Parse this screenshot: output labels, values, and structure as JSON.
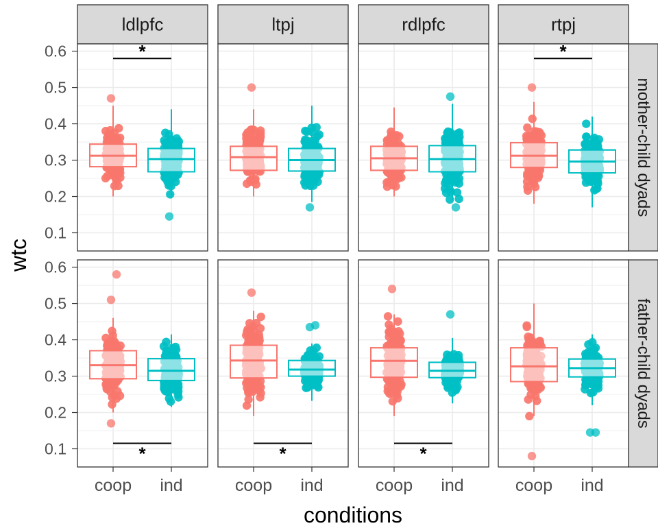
{
  "chart_data": {
    "type": "boxplot",
    "xlabel": "conditions",
    "ylabel": "wtc",
    "ylim": [
      0.05,
      0.62
    ],
    "yticks": [
      0.1,
      0.2,
      0.3,
      0.4,
      0.5,
      0.6
    ],
    "ytick_labels": [
      "0.1",
      "0.2",
      "0.3",
      "0.4",
      "0.5",
      "0.6"
    ],
    "categories": [
      "coop",
      "ind"
    ],
    "columns": [
      "ldlpfc",
      "ltpj",
      "rdlpfc",
      "rtpj"
    ],
    "rows": [
      "mother-child dyads",
      "father-child dyads"
    ],
    "grid": true,
    "colors": {
      "coop": "#F8766D",
      "ind": "#00BFC4",
      "box_fill": "#ffffff",
      "strip": "#D9D9D9",
      "grid": "#EBEBEB"
    },
    "significance_marker": "*",
    "panels": [
      {
        "row": 0,
        "col": 0,
        "sig": {
          "label": "*",
          "y": 0.58
        },
        "groups": [
          {
            "condition": "coop",
            "q1": 0.282,
            "median": 0.312,
            "q3": 0.344,
            "min": 0.2,
            "max": 0.45,
            "outliers": [
              0.47
            ]
          },
          {
            "condition": "ind",
            "q1": 0.268,
            "median": 0.303,
            "q3": 0.332,
            "min": 0.195,
            "max": 0.44,
            "outliers": [
              0.145
            ]
          }
        ]
      },
      {
        "row": 0,
        "col": 1,
        "sig": null,
        "groups": [
          {
            "condition": "coop",
            "q1": 0.272,
            "median": 0.308,
            "q3": 0.338,
            "min": 0.2,
            "max": 0.44,
            "outliers": [
              0.5
            ]
          },
          {
            "condition": "ind",
            "q1": 0.27,
            "median": 0.3,
            "q3": 0.332,
            "min": 0.185,
            "max": 0.45,
            "outliers": [
              0.17
            ]
          }
        ]
      },
      {
        "row": 0,
        "col": 2,
        "sig": null,
        "groups": [
          {
            "condition": "coop",
            "q1": 0.272,
            "median": 0.305,
            "q3": 0.338,
            "min": 0.2,
            "max": 0.445,
            "outliers": []
          },
          {
            "condition": "ind",
            "q1": 0.268,
            "median": 0.303,
            "q3": 0.34,
            "min": 0.19,
            "max": 0.455,
            "outliers": [
              0.475,
              0.17
            ]
          }
        ]
      },
      {
        "row": 0,
        "col": 3,
        "sig": {
          "label": "*",
          "y": 0.58
        },
        "groups": [
          {
            "condition": "coop",
            "q1": 0.28,
            "median": 0.312,
            "q3": 0.348,
            "min": 0.18,
            "max": 0.46,
            "outliers": [
              0.5
            ]
          },
          {
            "condition": "ind",
            "q1": 0.265,
            "median": 0.296,
            "q3": 0.328,
            "min": 0.17,
            "max": 0.42,
            "outliers": []
          }
        ]
      },
      {
        "row": 1,
        "col": 0,
        "sig": {
          "label": "*",
          "y": 0.115
        },
        "groups": [
          {
            "condition": "coop",
            "q1": 0.293,
            "median": 0.33,
            "q3": 0.37,
            "min": 0.2,
            "max": 0.46,
            "outliers": [
              0.51,
              0.58,
              0.17
            ]
          },
          {
            "condition": "ind",
            "q1": 0.288,
            "median": 0.315,
            "q3": 0.348,
            "min": 0.215,
            "max": 0.415,
            "outliers": []
          }
        ]
      },
      {
        "row": 1,
        "col": 1,
        "sig": {
          "label": "*",
          "y": 0.115
        },
        "groups": [
          {
            "condition": "coop",
            "q1": 0.295,
            "median": 0.343,
            "q3": 0.385,
            "min": 0.19,
            "max": 0.48,
            "outliers": [
              0.53
            ]
          },
          {
            "condition": "ind",
            "q1": 0.3,
            "median": 0.318,
            "q3": 0.343,
            "min": 0.232,
            "max": 0.39,
            "outliers": [
              0.435,
              0.44
            ]
          }
        ]
      },
      {
        "row": 1,
        "col": 2,
        "sig": {
          "label": "*",
          "y": 0.115
        },
        "groups": [
          {
            "condition": "coop",
            "q1": 0.297,
            "median": 0.342,
            "q3": 0.378,
            "min": 0.19,
            "max": 0.47,
            "outliers": [
              0.54
            ]
          },
          {
            "condition": "ind",
            "q1": 0.296,
            "median": 0.315,
            "q3": 0.338,
            "min": 0.225,
            "max": 0.405,
            "outliers": [
              0.47
            ]
          }
        ]
      },
      {
        "row": 1,
        "col": 3,
        "sig": null,
        "groups": [
          {
            "condition": "coop",
            "q1": 0.285,
            "median": 0.327,
            "q3": 0.378,
            "min": 0.19,
            "max": 0.5,
            "outliers": [
              0.08
            ]
          },
          {
            "condition": "ind",
            "q1": 0.298,
            "median": 0.322,
            "q3": 0.347,
            "min": 0.22,
            "max": 0.415,
            "outliers": [
              0.145,
              0.145
            ]
          }
        ]
      }
    ]
  }
}
